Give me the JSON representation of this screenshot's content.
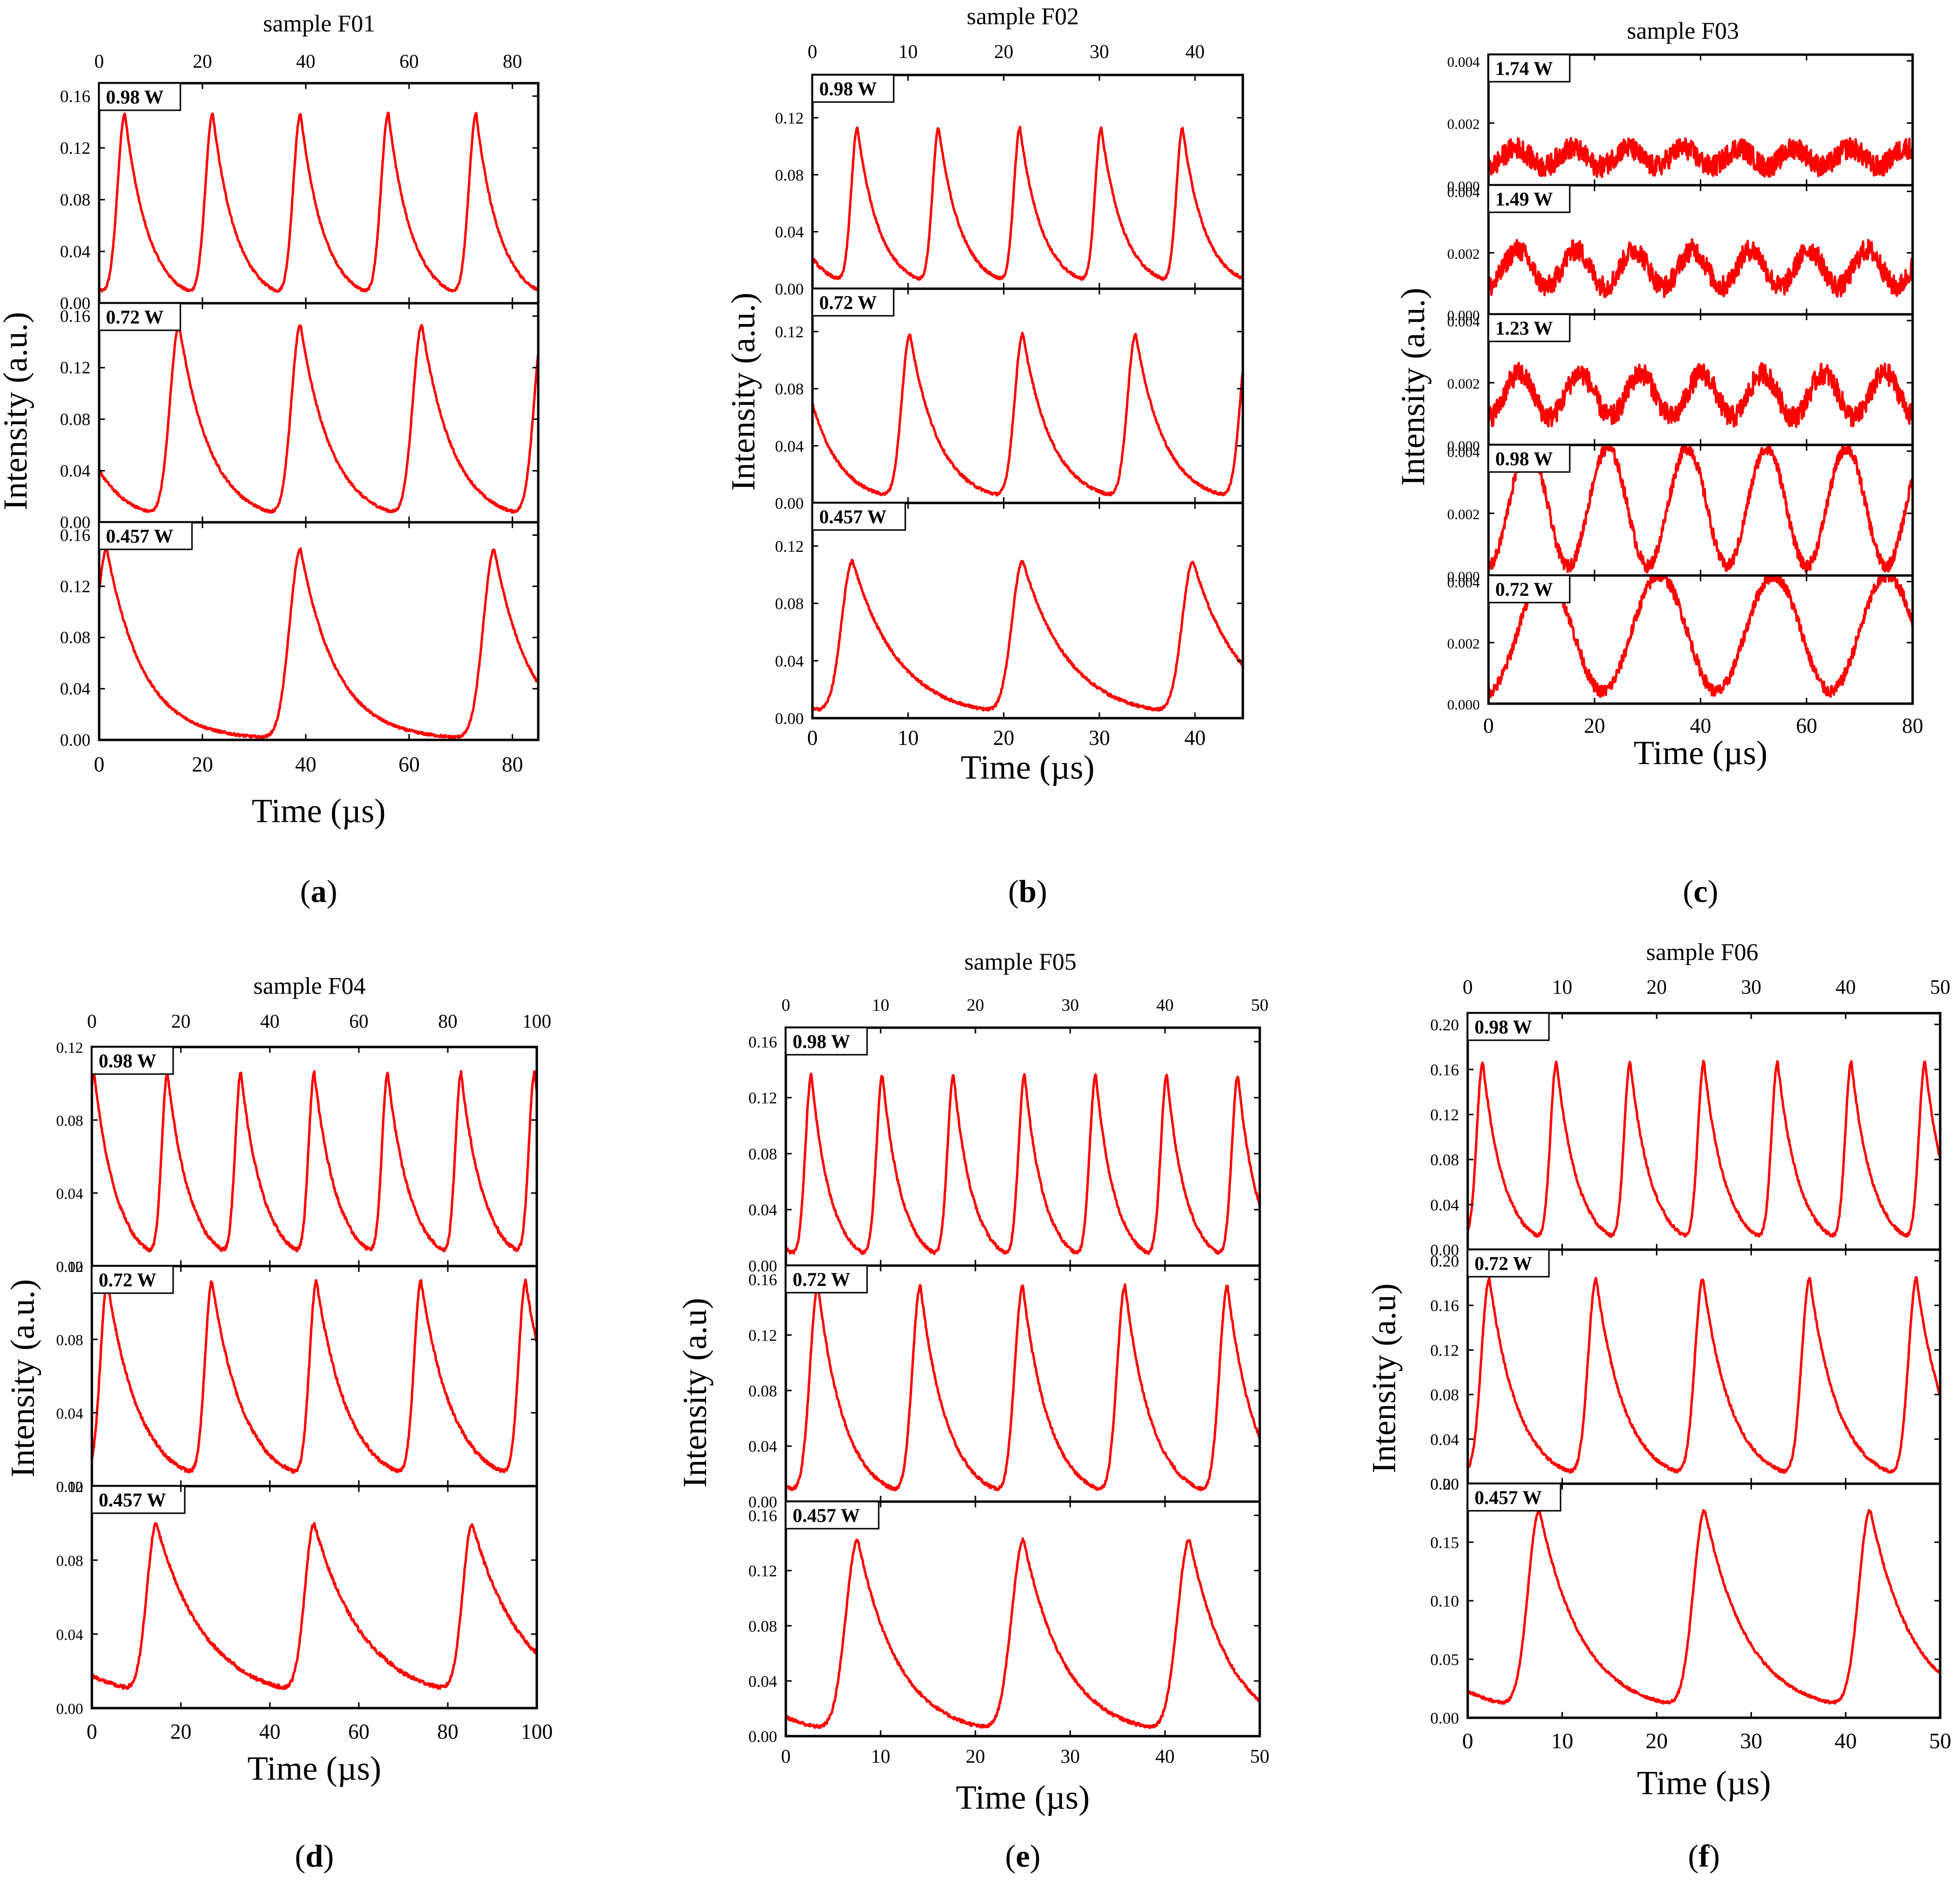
{
  "chart_data": [
    {
      "type": "line",
      "panel_label": "a",
      "title": "sample F01",
      "xlabel": "Time (µs)",
      "ylabel": "Intensity (a.u.)",
      "xlim": [
        0,
        85
      ],
      "xticks": [
        0,
        20,
        40,
        60,
        80
      ],
      "top_axis_ticks": [
        0,
        20,
        40,
        60,
        80
      ],
      "line_color": "#ff0000",
      "series": [
        {
          "name": "0.98 W",
          "ylim": [
            0,
            0.17
          ],
          "yticks": [
            "0.00",
            "0.04",
            "0.08",
            "0.12",
            "0.16"
          ],
          "peak": 0.143,
          "period_us": 17,
          "first_peak_us": 5,
          "rise_us": 2,
          "decay_us": 4.5,
          "baseline": 0,
          "noise": 0.001
        },
        {
          "name": "0.72 W",
          "ylim": [
            0,
            0.17
          ],
          "yticks": [
            "0.00",
            "0.04",
            "0.08",
            "0.12",
            "0.16"
          ],
          "peak": 0.15,
          "period_us": 23.5,
          "first_peak_us": 15.5,
          "rise_us": 2.5,
          "decay_us": 6,
          "baseline": 0,
          "noise": 0.001
        },
        {
          "name": "0.457 W",
          "ylim": [
            0,
            0.17
          ],
          "yticks": [
            "0.00",
            "0.04",
            "0.08",
            "0.12",
            "0.16"
          ],
          "peak": 0.148,
          "period_us": 37.5,
          "first_peak_us": 1.5,
          "rise_us": 3,
          "decay_us": 7,
          "baseline": 0,
          "noise": 0.001
        }
      ]
    },
    {
      "type": "line",
      "panel_label": "b",
      "title": "sample F02",
      "xlabel": "Time (µs)",
      "ylabel": "Intensity (a.u.)",
      "xlim": [
        0,
        45
      ],
      "xticks": [
        0,
        10,
        20,
        30,
        40
      ],
      "top_axis_ticks": [
        0,
        10,
        20,
        30,
        40
      ],
      "line_color": "#ff0000",
      "series": [
        {
          "name": "0.98 W",
          "ylim": [
            0,
            0.15
          ],
          "yticks": [
            "0.00",
            "0.04",
            "0.08",
            "0.12"
          ],
          "peak": 0.11,
          "period_us": 8.5,
          "first_peak_us": 4.7,
          "rise_us": 0.9,
          "decay_us": 2.3,
          "baseline": 0,
          "noise": 0.001
        },
        {
          "name": "0.72 W",
          "ylim": [
            0,
            0.15
          ],
          "yticks": [
            "0.00",
            "0.04",
            "0.08",
            "0.12"
          ],
          "peak": 0.116,
          "period_us": 11.8,
          "first_peak_us": 10.2,
          "rise_us": 1.2,
          "decay_us": 3,
          "baseline": 0,
          "noise": 0.001
        },
        {
          "name": "0.457 W",
          "ylim": [
            0,
            0.15
          ],
          "yticks": [
            "0.00",
            "0.04",
            "0.08",
            "0.12"
          ],
          "peak": 0.107,
          "period_us": 17.8,
          "first_peak_us": 4.2,
          "rise_us": 1.6,
          "decay_us": 4.8,
          "baseline": 0,
          "noise": 0.001
        }
      ]
    },
    {
      "type": "line",
      "panel_label": "c",
      "title": "sample F03",
      "xlabel": "Time (µs)",
      "ylabel": "Intensity (a.u.)",
      "xlim": [
        0,
        80
      ],
      "xticks": [
        0,
        20,
        40,
        60,
        80
      ],
      "line_color": "#ff0000",
      "series": [
        {
          "name": "1.74 W",
          "ylim": [
            0,
            0.0042
          ],
          "yticks": [
            "0.000",
            "0.002",
            "0.004"
          ],
          "center": 0.0009,
          "amplitude": 0.0003,
          "period_us": 10.5,
          "noise": 0.00035
        },
        {
          "name": "1.49 W",
          "ylim": [
            0,
            0.0042
          ],
          "yticks": [
            "0.000",
            "0.002",
            "0.004"
          ],
          "center": 0.0015,
          "amplitude": 0.0006,
          "period_us": 11,
          "noise": 0.00035
        },
        {
          "name": "1.23 W",
          "ylim": [
            0,
            0.0042
          ],
          "yticks": [
            "0.000",
            "0.002",
            "0.004"
          ],
          "center": 0.0016,
          "amplitude": 0.0007,
          "period_us": 11.5,
          "noise": 0.00035
        },
        {
          "name": "0.98 W",
          "ylim": [
            0,
            0.0042
          ],
          "yticks": [
            "0.000",
            "0.002",
            "0.004"
          ],
          "center": 0.0022,
          "amplitude": 0.0019,
          "period_us": 15,
          "noise": 0.0002
        },
        {
          "name": "0.72 W",
          "ylim": [
            0,
            0.0042
          ],
          "yticks": [
            "0.000",
            "0.002",
            "0.004"
          ],
          "center": 0.0023,
          "amplitude": 0.0019,
          "period_us": 21.5,
          "noise": 0.0002
        }
      ]
    },
    {
      "type": "line",
      "panel_label": "d",
      "title": "sample F04",
      "xlabel": "Time (µs)",
      "ylabel": "Intensity (a.u.)",
      "xlim": [
        0,
        100
      ],
      "xticks": [
        0,
        20,
        40,
        60,
        80,
        100
      ],
      "top_axis_ticks": [
        0,
        20,
        40,
        60,
        80,
        100
      ],
      "line_color": "#ff0000",
      "series": [
        {
          "name": "0.98 W",
          "ylim": [
            0,
            0.12
          ],
          "yticks": [
            "0.00",
            "0.04",
            "0.08",
            "0.12"
          ],
          "peak": 0.102,
          "period_us": 16.5,
          "first_peak_us": 0.5,
          "rise_us": 1.8,
          "decay_us": 5,
          "baseline": 0,
          "noise": 0.001
        },
        {
          "name": "0.72 W",
          "ylim": [
            0,
            0.12
          ],
          "yticks": [
            "0.00",
            "0.04",
            "0.08",
            "0.12"
          ],
          "peak": 0.108,
          "period_us": 23.5,
          "first_peak_us": 3.5,
          "rise_us": 2.2,
          "decay_us": 7,
          "baseline": 0,
          "noise": 0.001
        },
        {
          "name": "0.457 W",
          "ylim": [
            0,
            0.12
          ],
          "yticks": [
            "0.00",
            "0.04",
            "0.08",
            "0.12"
          ],
          "peak": 0.092,
          "period_us": 35.5,
          "first_peak_us": 14.5,
          "rise_us": 3,
          "decay_us": 11,
          "baseline": 0.004,
          "noise": 0.001
        }
      ]
    },
    {
      "type": "line",
      "panel_label": "e",
      "title": "sample F05",
      "xlabel": "Time (µs)",
      "ylabel": "Intensity (a.u)",
      "xlim": [
        0,
        50
      ],
      "xticks": [
        0,
        10,
        20,
        30,
        40,
        50
      ],
      "top_axis_ticks": [
        0,
        10,
        20,
        30,
        40,
        50
      ],
      "line_color": "#ff0000",
      "series": [
        {
          "name": "0.98 W",
          "ylim": [
            0,
            0.17
          ],
          "yticks": [
            "0.00",
            "0.04",
            "0.08",
            "0.12",
            "0.16"
          ],
          "peak": 0.133,
          "period_us": 7.5,
          "first_peak_us": 2.7,
          "rise_us": 0.9,
          "decay_us": 2,
          "baseline": 0,
          "noise": 0.0012
        },
        {
          "name": "0.72 W",
          "ylim": [
            0,
            0.17
          ],
          "yticks": [
            "0.00",
            "0.04",
            "0.08",
            "0.12",
            "0.16"
          ],
          "peak": 0.152,
          "period_us": 10.8,
          "first_peak_us": 3.4,
          "rise_us": 1.2,
          "decay_us": 2.8,
          "baseline": 0,
          "noise": 0.0012
        },
        {
          "name": "0.457 W",
          "ylim": [
            0,
            0.17
          ],
          "yticks": [
            "0.00",
            "0.04",
            "0.08",
            "0.12",
            "0.16"
          ],
          "peak": 0.14,
          "period_us": 17.5,
          "first_peak_us": 7.6,
          "rise_us": 1.8,
          "decay_us": 4.3,
          "baseline": 0,
          "noise": 0.0012
        }
      ]
    },
    {
      "type": "line",
      "panel_label": "f",
      "title": "sample F06",
      "xlabel": "Time (µs)",
      "ylabel": "Intensity (a.u)",
      "xlim": [
        0,
        50
      ],
      "xticks": [
        0,
        10,
        20,
        30,
        40,
        50
      ],
      "top_axis_ticks": [
        0,
        10,
        20,
        30,
        40,
        50
      ],
      "line_color": "#ff0000",
      "series": [
        {
          "name": "0.98 W",
          "ylim": [
            0,
            0.21
          ],
          "yticks": [
            "0.00",
            "0.04",
            "0.08",
            "0.12",
            "0.16",
            "0.20"
          ],
          "peak": 0.162,
          "period_us": 7.8,
          "first_peak_us": 1.6,
          "rise_us": 0.9,
          "decay_us": 2.2,
          "baseline": 0,
          "noise": 0.0015
        },
        {
          "name": "0.72 W",
          "ylim": [
            0,
            0.21
          ],
          "yticks": [
            "0.00",
            "0.04",
            "0.08",
            "0.12",
            "0.16",
            "0.20"
          ],
          "peak": 0.18,
          "period_us": 11.3,
          "first_peak_us": 2.3,
          "rise_us": 1.2,
          "decay_us": 3,
          "baseline": 0,
          "noise": 0.0015
        },
        {
          "name": "0.457 W",
          "ylim": [
            0,
            0.2
          ],
          "yticks": [
            "0.00",
            "0.05",
            "0.10",
            "0.15",
            "0.20"
          ],
          "peak": 0.17,
          "period_us": 17.5,
          "first_peak_us": 7.6,
          "rise_us": 1.7,
          "decay_us": 4.5,
          "baseline": 0.004,
          "noise": 0.0012
        }
      ]
    }
  ]
}
